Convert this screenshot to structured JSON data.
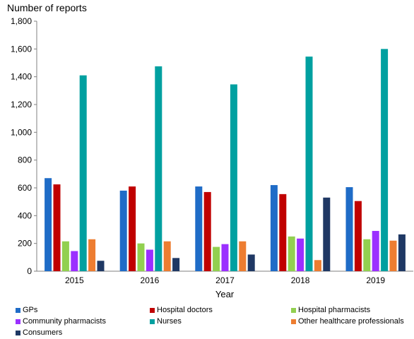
{
  "chart_data": {
    "type": "bar",
    "title": "Number of reports",
    "xlabel": "Year",
    "ylabel": "",
    "ylim": [
      0,
      1800
    ],
    "yticks": [
      0,
      200,
      400,
      600,
      800,
      1000,
      1200,
      1400,
      1600,
      1800
    ],
    "ytick_labels": [
      "0",
      "200",
      "400",
      "600",
      "800",
      "1,000",
      "1,200",
      "1,400",
      "1,600",
      "1,800"
    ],
    "categories": [
      "2015",
      "2016",
      "2017",
      "2018",
      "2019"
    ],
    "grid": false,
    "legend_position": "bottom",
    "series": [
      {
        "name": "GPs",
        "color": "#1f6cc7",
        "values": [
          670,
          580,
          610,
          620,
          605
        ]
      },
      {
        "name": "Hospital doctors",
        "color": "#c00000",
        "values": [
          625,
          610,
          570,
          555,
          505
        ]
      },
      {
        "name": "Hospital pharmacists",
        "color": "#92d050",
        "values": [
          215,
          200,
          175,
          250,
          230
        ]
      },
      {
        "name": "Community pharmacists",
        "color": "#9b30ff",
        "values": [
          145,
          155,
          195,
          235,
          290
        ]
      },
      {
        "name": "Nurses",
        "color": "#00a0a0",
        "values": [
          1410,
          1475,
          1345,
          1545,
          1600
        ]
      },
      {
        "name": "Other healthcare professionals",
        "color": "#ed7d31",
        "values": [
          230,
          215,
          215,
          80,
          220
        ]
      },
      {
        "name": "Consumers",
        "color": "#1f3864",
        "values": [
          75,
          95,
          120,
          530,
          265
        ]
      }
    ]
  }
}
